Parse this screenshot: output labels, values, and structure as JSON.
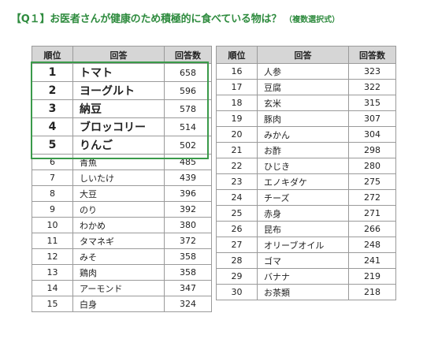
{
  "title": {
    "main": "【Q１】お医者さんが健康のため積極的に食べている物は？",
    "sub": "（複数選択式）"
  },
  "headers": {
    "rank": "順位",
    "answer": "回答",
    "count": "回答数"
  },
  "left_rows": [
    {
      "rank": "1",
      "answer": "トマト",
      "count": "658"
    },
    {
      "rank": "2",
      "answer": "ヨーグルト",
      "count": "596"
    },
    {
      "rank": "3",
      "answer": "納豆",
      "count": "578"
    },
    {
      "rank": "4",
      "answer": "ブロッコリー",
      "count": "514"
    },
    {
      "rank": "5",
      "answer": "りんご",
      "count": "502"
    },
    {
      "rank": "6",
      "answer": "青魚",
      "count": "485"
    },
    {
      "rank": "7",
      "answer": "しいたけ",
      "count": "439"
    },
    {
      "rank": "8",
      "answer": "大豆",
      "count": "396"
    },
    {
      "rank": "9",
      "answer": "のり",
      "count": "392"
    },
    {
      "rank": "10",
      "answer": "わかめ",
      "count": "380"
    },
    {
      "rank": "11",
      "answer": "タマネギ",
      "count": "372"
    },
    {
      "rank": "12",
      "answer": "みそ",
      "count": "358"
    },
    {
      "rank": "13",
      "answer": "鶏肉",
      "count": "358"
    },
    {
      "rank": "14",
      "answer": "アーモンド",
      "count": "347"
    },
    {
      "rank": "15",
      "answer": "白身",
      "count": "324"
    }
  ],
  "right_rows": [
    {
      "rank": "16",
      "answer": "人参",
      "count": "323"
    },
    {
      "rank": "17",
      "answer": "豆腐",
      "count": "322"
    },
    {
      "rank": "18",
      "answer": "玄米",
      "count": "315"
    },
    {
      "rank": "19",
      "answer": "豚肉",
      "count": "307"
    },
    {
      "rank": "20",
      "answer": "みかん",
      "count": "304"
    },
    {
      "rank": "21",
      "answer": "お酢",
      "count": "298"
    },
    {
      "rank": "22",
      "answer": "ひじき",
      "count": "280"
    },
    {
      "rank": "23",
      "answer": "エノキダケ",
      "count": "275"
    },
    {
      "rank": "24",
      "answer": "チーズ",
      "count": "272"
    },
    {
      "rank": "25",
      "answer": "赤身",
      "count": "271"
    },
    {
      "rank": "26",
      "answer": "昆布",
      "count": "266"
    },
    {
      "rank": "27",
      "answer": "オリーブオイル",
      "count": "248"
    },
    {
      "rank": "28",
      "answer": "ゴマ",
      "count": "241"
    },
    {
      "rank": "29",
      "answer": "バナナ",
      "count": "219"
    },
    {
      "rank": "30",
      "answer": "お茶類",
      "count": "218"
    }
  ],
  "colors": {
    "title": "#2e8b3e",
    "highlight_border": "#3a9a4a",
    "header_bg": "#d6d6d6"
  }
}
